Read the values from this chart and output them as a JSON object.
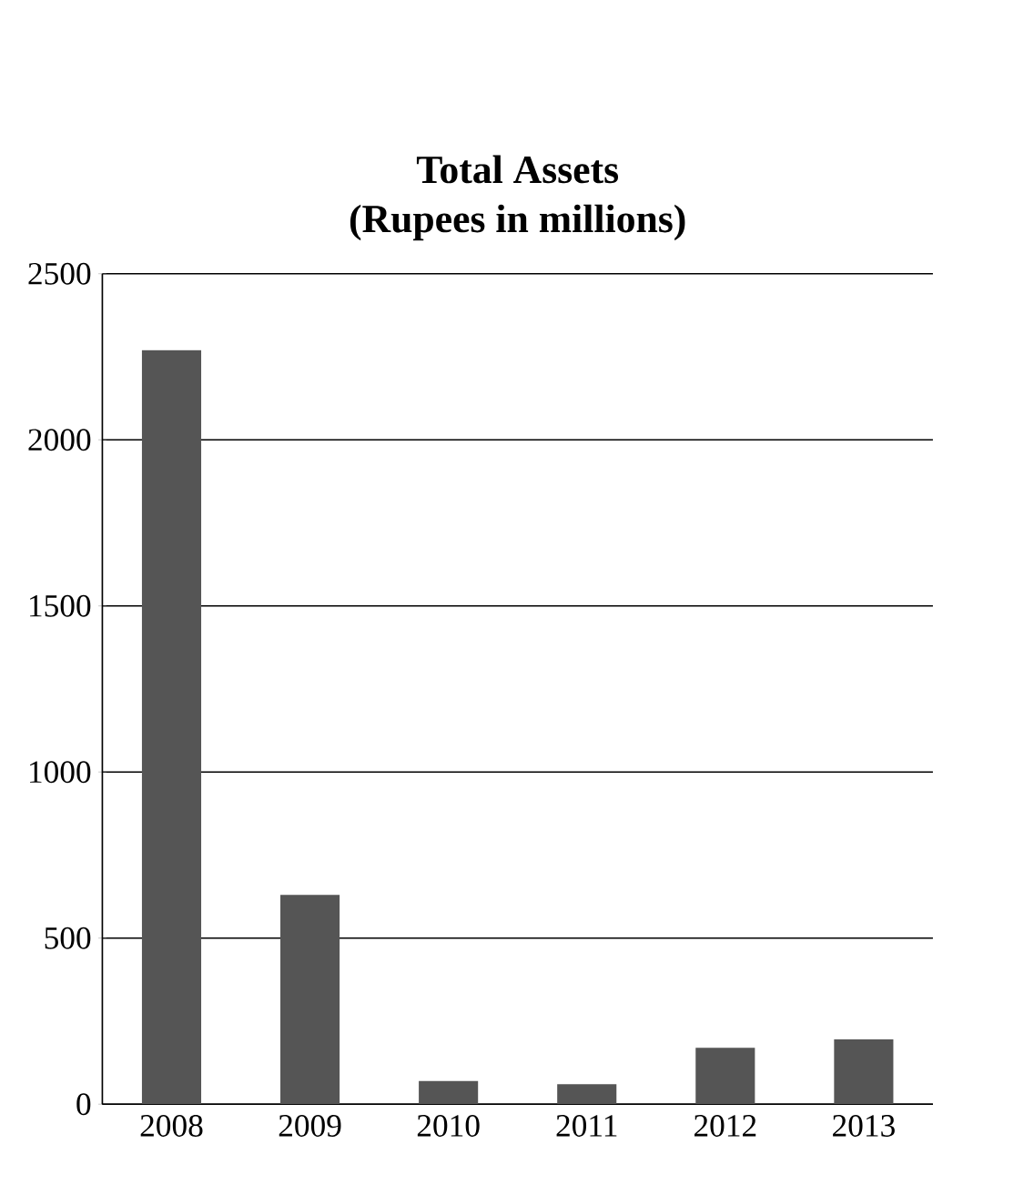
{
  "chart_data": {
    "type": "bar",
    "title": "Total Assets",
    "subtitle": "(Rupees in millions)",
    "categories": [
      "2008",
      "2009",
      "2010",
      "2011",
      "2012",
      "2013"
    ],
    "values": [
      2270,
      630,
      70,
      60,
      170,
      195
    ],
    "color": "#555555",
    "ylim": [
      0,
      2500
    ],
    "yticks": [
      0,
      500,
      1000,
      1500,
      2000,
      2500
    ],
    "grid": "y"
  }
}
